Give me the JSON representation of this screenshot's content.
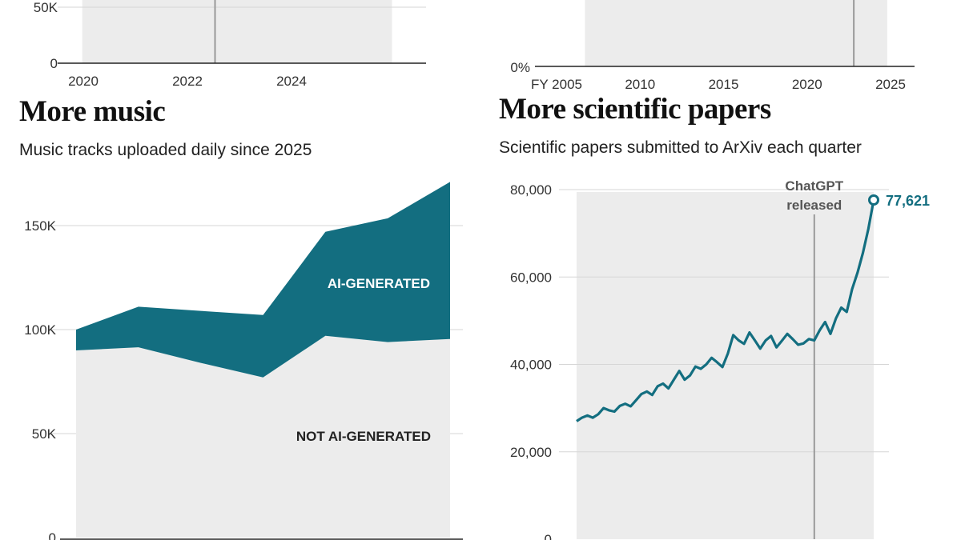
{
  "left_top_chart": {
    "y_ticks": [
      {
        "label": "50K",
        "value": 50000
      },
      {
        "label": "0",
        "value": 0
      }
    ],
    "x_ticks": [
      {
        "label": "2020",
        "value": 2020
      },
      {
        "label": "2022",
        "value": 2022
      },
      {
        "label": "2024",
        "value": 2024
      }
    ],
    "x_range": [
      2020,
      2026
    ],
    "shade_range": [
      2020.35,
      2026.3
    ],
    "marker_x": 2022.9
  },
  "right_top_chart": {
    "y_ticks": [
      {
        "label": "0%",
        "value": 0
      }
    ],
    "x_ticks": [
      {
        "label": "FY 2005",
        "value": 2005
      },
      {
        "label": "2010",
        "value": 2010
      },
      {
        "label": "2015",
        "value": 2015
      },
      {
        "label": "2020",
        "value": 2020
      },
      {
        "label": "2025",
        "value": 2025
      }
    ],
    "x_range": [
      2005,
      2025
    ],
    "shade_range": [
      2006.7,
      2024.8
    ],
    "marker_x": 2022.8
  },
  "music": {
    "title": "More music",
    "subtitle": "Music tracks uploaded daily since 2025"
  },
  "papers": {
    "title": "More scientific papers",
    "subtitle": "Scientific papers submitted to ArXiv each quarter"
  },
  "colors": {
    "teal": "#136e80",
    "shade": "#ececec",
    "grid": "#d6d6d6",
    "axis": "#222222",
    "marker": "#999999",
    "annotation": "#555555"
  },
  "chart_data": [
    {
      "type": "area",
      "title": "More music",
      "subtitle": "Music tracks uploaded daily since 2025",
      "stacked": true,
      "x": [
        0,
        1,
        2,
        3,
        4,
        5,
        6
      ],
      "series": [
        {
          "name": "NOT AI-GENERATED",
          "values": [
            90000,
            91500,
            84000,
            77000,
            97000,
            94000,
            95500
          ]
        },
        {
          "name": "AI-GENERATED",
          "values": [
            10000,
            19500,
            25000,
            30000,
            50000,
            59500,
            75500
          ]
        }
      ],
      "y_ticks": [
        {
          "label": "150K",
          "value": 150000
        },
        {
          "label": "100K",
          "value": 100000
        },
        {
          "label": "50K",
          "value": 50000
        },
        {
          "label": "0",
          "value": 0
        }
      ],
      "ylim": [
        0,
        172000
      ],
      "grid": true
    },
    {
      "type": "line",
      "title": "More scientific papers",
      "subtitle": "Scientific papers submitted to ArXiv each quarter",
      "x": [
        2007.0,
        2007.25,
        2007.5,
        2007.75,
        2008.0,
        2008.25,
        2008.5,
        2008.75,
        2009.0,
        2009.25,
        2009.5,
        2009.75,
        2010.0,
        2010.25,
        2010.5,
        2010.75,
        2011.0,
        2011.25,
        2011.5,
        2011.75,
        2012.0,
        2012.25,
        2012.5,
        2012.75,
        2013.0,
        2013.25,
        2013.5,
        2013.75,
        2014.0,
        2014.25,
        2014.5,
        2014.75,
        2015.0,
        2015.25,
        2015.5,
        2015.75,
        2016.0,
        2016.25,
        2016.5,
        2016.75,
        2017.0,
        2017.25,
        2017.5,
        2017.75,
        2018.0,
        2018.25,
        2018.5,
        2018.75,
        2019.0,
        2019.25,
        2019.5,
        2019.75,
        2020.0,
        2020.25,
        2020.5,
        2020.75
      ],
      "series": [
        {
          "name": "",
          "values": [
            27000,
            27800,
            28300,
            27800,
            28600,
            30000,
            29500,
            29200,
            30500,
            31000,
            30400,
            31800,
            33200,
            33800,
            33000,
            35000,
            35600,
            34500,
            36500,
            38500,
            36500,
            37500,
            39500,
            39000,
            40000,
            41500,
            40500,
            39400,
            42500,
            46700,
            45500,
            44700,
            47300,
            45500,
            43600,
            45500,
            46500,
            43900,
            45400,
            47000,
            45800,
            44500,
            44800,
            45800,
            45500,
            47800,
            49700,
            47000,
            50500,
            53000,
            52000,
            57200,
            61000,
            65500,
            71000,
            77621
          ]
        }
      ],
      "end_label": "77,621",
      "y_ticks": [
        {
          "label": "80,000",
          "value": 80000
        },
        {
          "label": "60,000",
          "value": 60000
        },
        {
          "label": "40,000",
          "value": 40000
        },
        {
          "label": "20,000",
          "value": 20000
        },
        {
          "label": "0",
          "value": 0
        }
      ],
      "ylim": [
        0,
        80000
      ],
      "annotation": {
        "line1": "ChatGPT",
        "line2": "released",
        "x": 2018.0
      },
      "grid": true
    }
  ]
}
